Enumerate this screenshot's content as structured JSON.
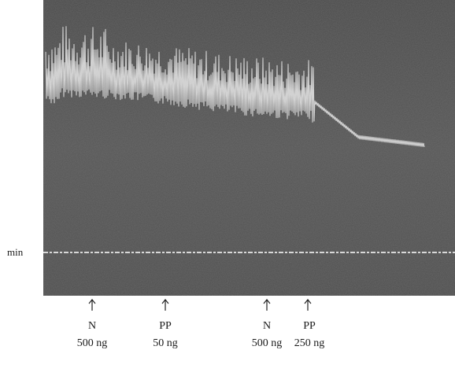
{
  "axis_label": "min",
  "markers": [
    {
      "drug": "N",
      "dose": "500 ng"
    },
    {
      "drug": "PP",
      "dose": "50 ng"
    },
    {
      "drug": "N",
      "dose": "500 ng"
    },
    {
      "drug": "PP",
      "dose": "250 ng"
    }
  ]
}
